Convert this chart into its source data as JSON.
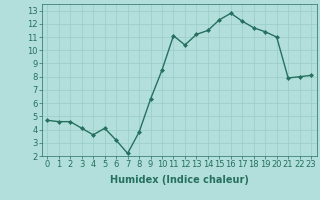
{
  "x": [
    0,
    1,
    2,
    3,
    4,
    5,
    6,
    7,
    8,
    9,
    10,
    11,
    12,
    13,
    14,
    15,
    16,
    17,
    18,
    19,
    20,
    21,
    22,
    23
  ],
  "y": [
    4.7,
    4.6,
    4.6,
    4.1,
    3.6,
    4.1,
    3.2,
    2.2,
    3.8,
    6.3,
    8.5,
    11.1,
    10.4,
    11.2,
    11.5,
    12.3,
    12.8,
    12.2,
    11.7,
    11.4,
    11.0,
    7.9,
    8.0,
    8.1
  ],
  "line_color": "#267060",
  "marker": "D",
  "marker_size": 2,
  "line_width": 1.0,
  "xlabel": "Humidex (Indice chaleur)",
  "xlabel_fontsize": 7,
  "xlabel_fontweight": "bold",
  "bg_color": "#b2dfdb",
  "grid_color": "#9ecfca",
  "xlim": [
    -0.5,
    23.5
  ],
  "ylim": [
    2,
    13.5
  ],
  "yticks": [
    2,
    3,
    4,
    5,
    6,
    7,
    8,
    9,
    10,
    11,
    12,
    13
  ],
  "xticks": [
    0,
    1,
    2,
    3,
    4,
    5,
    6,
    7,
    8,
    9,
    10,
    11,
    12,
    13,
    14,
    15,
    16,
    17,
    18,
    19,
    20,
    21,
    22,
    23
  ],
  "tick_fontsize": 6,
  "tick_color": "#267060"
}
